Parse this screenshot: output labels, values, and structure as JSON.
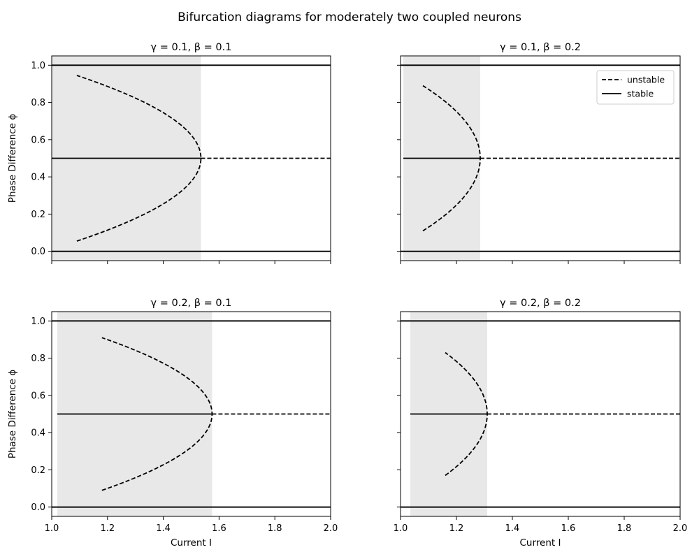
{
  "figure": {
    "title": "Bifurcation diagrams for moderately two coupled neurons"
  },
  "chart_data": [
    {
      "type": "line",
      "title": "γ = 0.1, β = 0.1",
      "xlabel": "",
      "ylabel": "Phase Difference ϕ",
      "xlim": [
        1.0,
        2.0
      ],
      "ylim": [
        -0.05,
        1.05
      ],
      "xticks": [
        1.0,
        1.2,
        1.4,
        1.6,
        1.8,
        2.0
      ],
      "yticks": [
        0.0,
        0.2,
        0.4,
        0.6,
        0.8,
        1.0
      ],
      "show_x_ticklabels": false,
      "show_y_ticklabels": true,
      "shaded_region": {
        "x": [
          1.0,
          1.535
        ],
        "color": "#e8e8e8"
      },
      "bifurcation": {
        "I_bif": 1.535,
        "I_start": 1.09,
        "phi_end_upper": 0.945
      },
      "series": [
        {
          "style": "stable",
          "points": [
            [
              1.0,
              1.0
            ],
            [
              2.0,
              1.0
            ]
          ]
        },
        {
          "style": "stable",
          "points": [
            [
              1.0,
              0.0
            ],
            [
              2.0,
              0.0
            ]
          ]
        },
        {
          "style": "stable",
          "points": [
            [
              1.0,
              0.5
            ],
            [
              1.535,
              0.5
            ]
          ]
        },
        {
          "style": "unstable",
          "points": [
            [
              1.535,
              0.5
            ],
            [
              2.0,
              0.5
            ]
          ]
        }
      ]
    },
    {
      "type": "line",
      "title": "γ = 0.1, β = 0.2",
      "xlabel": "",
      "ylabel": "",
      "xlim": [
        1.0,
        2.0
      ],
      "ylim": [
        -0.05,
        1.05
      ],
      "xticks": [
        1.0,
        1.2,
        1.4,
        1.6,
        1.8,
        2.0
      ],
      "yticks": [
        0.0,
        0.2,
        0.4,
        0.6,
        0.8,
        1.0
      ],
      "show_x_ticklabels": false,
      "show_y_ticklabels": false,
      "shaded_region": {
        "x": [
          1.01,
          1.285
        ],
        "color": "#e8e8e8"
      },
      "bifurcation": {
        "I_bif": 1.285,
        "I_start": 1.08,
        "phi_end_upper": 0.89
      },
      "legend": {
        "placement": "upper right",
        "entries": [
          {
            "label": "unstable",
            "style": "unstable"
          },
          {
            "label": "stable",
            "style": "stable"
          }
        ]
      },
      "series": [
        {
          "style": "stable",
          "points": [
            [
              1.0,
              1.0
            ],
            [
              2.0,
              1.0
            ]
          ]
        },
        {
          "style": "stable",
          "points": [
            [
              1.0,
              0.0
            ],
            [
              2.0,
              0.0
            ]
          ]
        },
        {
          "style": "stable",
          "points": [
            [
              1.01,
              0.5
            ],
            [
              1.285,
              0.5
            ]
          ]
        },
        {
          "style": "unstable",
          "points": [
            [
              1.285,
              0.5
            ],
            [
              2.0,
              0.5
            ]
          ]
        }
      ]
    },
    {
      "type": "line",
      "title": "γ = 0.2, β = 0.1",
      "xlabel": "Current I",
      "ylabel": "Phase Difference ϕ",
      "xlim": [
        1.0,
        2.0
      ],
      "ylim": [
        -0.05,
        1.05
      ],
      "xticks": [
        1.0,
        1.2,
        1.4,
        1.6,
        1.8,
        2.0
      ],
      "yticks": [
        0.0,
        0.2,
        0.4,
        0.6,
        0.8,
        1.0
      ],
      "show_x_ticklabels": true,
      "show_y_ticklabels": true,
      "shaded_region": {
        "x": [
          1.02,
          1.575
        ],
        "color": "#e8e8e8"
      },
      "bifurcation": {
        "I_bif": 1.575,
        "I_start": 1.18,
        "phi_end_upper": 0.91
      },
      "series": [
        {
          "style": "stable",
          "points": [
            [
              1.0,
              1.0
            ],
            [
              2.0,
              1.0
            ]
          ]
        },
        {
          "style": "stable",
          "points": [
            [
              1.0,
              0.0
            ],
            [
              2.0,
              0.0
            ]
          ]
        },
        {
          "style": "stable",
          "points": [
            [
              1.02,
              0.5
            ],
            [
              1.575,
              0.5
            ]
          ]
        },
        {
          "style": "unstable",
          "points": [
            [
              1.575,
              0.5
            ],
            [
              2.0,
              0.5
            ]
          ]
        }
      ]
    },
    {
      "type": "line",
      "title": "γ = 0.2, β = 0.2",
      "xlabel": "Current I",
      "ylabel": "",
      "xlim": [
        1.0,
        2.0
      ],
      "ylim": [
        -0.05,
        1.05
      ],
      "xticks": [
        1.0,
        1.2,
        1.4,
        1.6,
        1.8,
        2.0
      ],
      "yticks": [
        0.0,
        0.2,
        0.4,
        0.6,
        0.8,
        1.0
      ],
      "show_x_ticklabels": true,
      "show_y_ticklabels": false,
      "shaded_region": {
        "x": [
          1.035,
          1.31
        ],
        "color": "#e8e8e8"
      },
      "bifurcation": {
        "I_bif": 1.31,
        "I_start": 1.16,
        "phi_end_upper": 0.83
      },
      "series": [
        {
          "style": "stable",
          "points": [
            [
              1.0,
              1.0
            ],
            [
              2.0,
              1.0
            ]
          ]
        },
        {
          "style": "stable",
          "points": [
            [
              1.0,
              0.0
            ],
            [
              2.0,
              0.0
            ]
          ]
        },
        {
          "style": "stable",
          "points": [
            [
              1.035,
              0.5
            ],
            [
              1.31,
              0.5
            ]
          ]
        },
        {
          "style": "unstable",
          "points": [
            [
              1.31,
              0.5
            ],
            [
              2.0,
              0.5
            ]
          ]
        }
      ]
    }
  ]
}
